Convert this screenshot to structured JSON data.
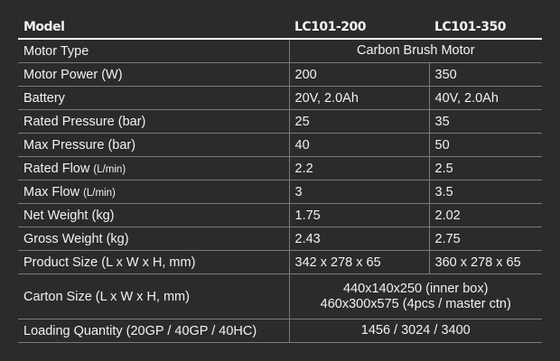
{
  "header": {
    "label": "Model",
    "models": [
      "LC101-200",
      "LC101-350"
    ]
  },
  "rows": [
    {
      "label": "Motor Type",
      "merged": [
        "Carbon Brush Motor"
      ]
    },
    {
      "label": "Motor Power (W)",
      "values": [
        "200",
        "350"
      ]
    },
    {
      "label": "Battery",
      "values": [
        "20V, 2.0Ah",
        "40V, 2.0Ah"
      ]
    },
    {
      "label": "Rated Pressure (bar)",
      "values": [
        "25",
        "35"
      ]
    },
    {
      "label": "Max Pressure (bar)",
      "values": [
        "40",
        "50"
      ]
    },
    {
      "label": "Rated Flow",
      "unit": "(L/min)",
      "values": [
        "2.2",
        "2.5"
      ]
    },
    {
      "label": "Max Flow",
      "unit": "(L/min)",
      "values": [
        "3",
        "3.5"
      ]
    },
    {
      "label": "Net Weight (kg)",
      "values": [
        "1.75",
        "2.02"
      ]
    },
    {
      "label": "Gross Weight (kg)",
      "values": [
        "2.43",
        "2.75"
      ]
    },
    {
      "label": "Product Size (L x W x H, mm)",
      "values": [
        "342 x 278 x 65",
        "360 x 278 x 65"
      ]
    },
    {
      "label": "Carton Size (L x W x H, mm)",
      "merged": [
        "440x140x250 (inner box)",
        "460x300x575 (4pcs / master ctn)"
      ]
    },
    {
      "label": "Loading Quantity (20GP / 40GP / 40HC)",
      "merged": [
        "1456 / 3024 / 3400"
      ]
    }
  ]
}
